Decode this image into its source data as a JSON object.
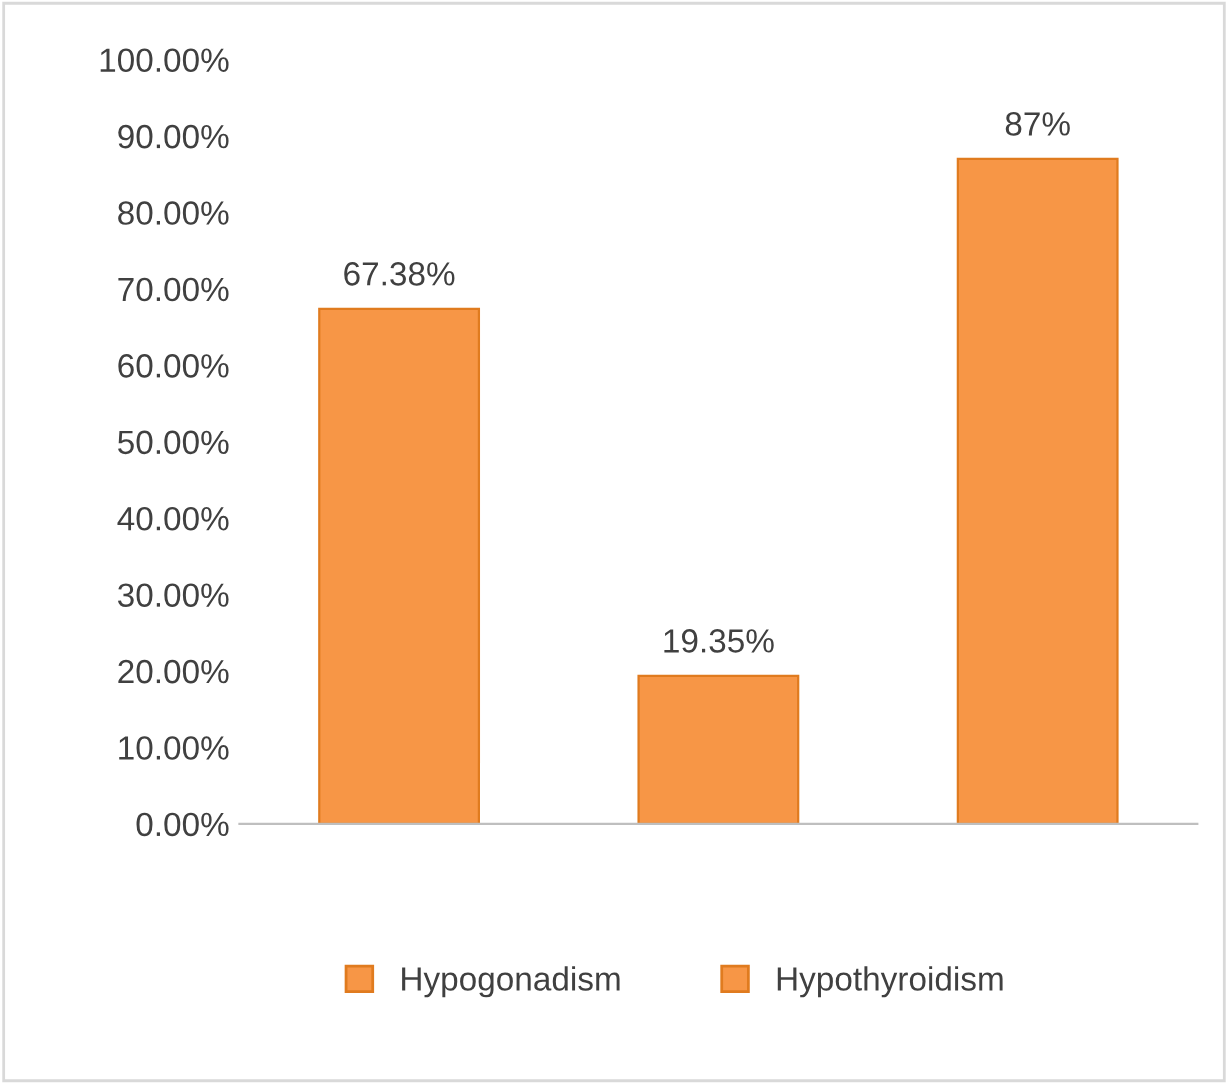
{
  "chart_data": {
    "type": "bar",
    "categories": [
      null,
      null,
      null
    ],
    "series": [
      {
        "name": "Hypogonadism",
        "color": "#f79646",
        "values": [
          67.38,
          null,
          null
        ],
        "value_labels": [
          "67.38%",
          null,
          null
        ]
      },
      {
        "name": "Hypothyroidism",
        "color": "#f79646",
        "values": [
          null,
          19.35,
          null
        ],
        "value_labels": [
          null,
          "19.35%",
          null
        ]
      },
      {
        "color": "#f79646",
        "values": [
          null,
          null,
          87
        ],
        "value_labels": [
          null,
          null,
          "87%"
        ]
      }
    ],
    "ylim": [
      0,
      100
    ],
    "yticks": [
      {
        "value": 0,
        "label": "0.00%"
      },
      {
        "value": 10,
        "label": "10.00%"
      },
      {
        "value": 20,
        "label": "20.00%"
      },
      {
        "value": 30,
        "label": "30.00%"
      },
      {
        "value": 40,
        "label": "40.00%"
      },
      {
        "value": 50,
        "label": "50.00%"
      },
      {
        "value": 60,
        "label": "60.00%"
      },
      {
        "value": 70,
        "label": "70.00%"
      },
      {
        "value": 80,
        "label": "80.00%"
      },
      {
        "value": 90,
        "label": "90.00%"
      },
      {
        "value": 100,
        "label": "100.00%"
      }
    ],
    "legend": "bottom",
    "grid": false
  }
}
